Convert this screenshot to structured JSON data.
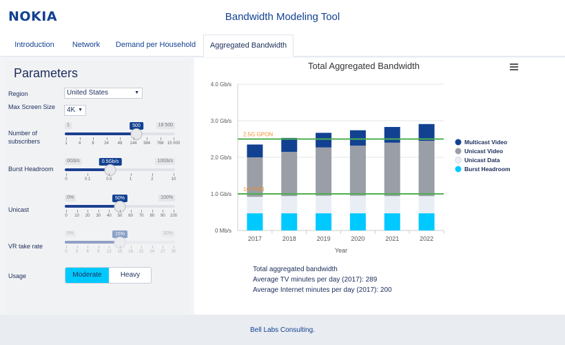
{
  "header": {
    "logo": "NOKIA",
    "title": "Bandwidth Modeling Tool"
  },
  "tabs": [
    {
      "label": "Introduction",
      "active": false
    },
    {
      "label": "Network",
      "active": false
    },
    {
      "label": "Demand per Household",
      "active": false
    },
    {
      "label": "Aggregated Bandwidth",
      "active": true
    }
  ],
  "parameters": {
    "title": "Parameters",
    "region": {
      "label": "Region",
      "value": "United States"
    },
    "screen": {
      "label": "Max Screen Size",
      "value": "4K"
    },
    "subscribers": {
      "label": "Number of subscribers",
      "min": "1",
      "max": "18 500",
      "value": "500",
      "ticks": [
        "1",
        "4",
        "8",
        "24",
        "48",
        "144",
        "384",
        "768",
        "15 000"
      ]
    },
    "burst": {
      "label": "Burst Headroom",
      "min": "0Gb/s",
      "max": "10Gb/s",
      "value": "0.5Gb/s",
      "ticks": [
        "0",
        "0.1",
        "0.5",
        "1",
        "2",
        "10"
      ]
    },
    "unicast": {
      "label": "Unicast",
      "min": "0%",
      "max": "100%",
      "value": "50%",
      "ticks": [
        "0",
        "10",
        "20",
        "30",
        "40",
        "50",
        "60",
        "70",
        "80",
        "90",
        "100"
      ]
    },
    "vr": {
      "label": "VR take rate",
      "min": "0%",
      "max": "30%",
      "value": "15%",
      "ticks": [
        "0",
        "3",
        "6",
        "9",
        "12",
        "15",
        "18",
        "21",
        "24",
        "27",
        "30"
      ]
    },
    "usage": {
      "label": "Usage",
      "options": [
        "Moderate",
        "Heavy"
      ],
      "selected": "Moderate"
    }
  },
  "chart_data": {
    "type": "bar",
    "stacked": true,
    "title": "Total Aggregated Bandwidth",
    "xlabel": "Year",
    "ylabel": "",
    "categories": [
      "2017",
      "2018",
      "2019",
      "2020",
      "2021",
      "2022"
    ],
    "ylim": [
      0,
      4.0
    ],
    "yticks": [
      "0 Mb/s",
      "1.0 Gb/s",
      "2.0 Gb/s",
      "3.0 Gb/s",
      "4.0 Gb/s"
    ],
    "series": [
      {
        "name": "Burst Headroom",
        "color": "#00c9ff",
        "values": [
          0.47,
          0.47,
          0.47,
          0.47,
          0.47,
          0.47
        ]
      },
      {
        "name": "Unicast Data",
        "color": "#e9eef5",
        "values": [
          0.45,
          0.47,
          0.48,
          0.48,
          0.47,
          0.47
        ]
      },
      {
        "name": "Unicast Video",
        "color": "#9a9ea6",
        "values": [
          1.08,
          1.21,
          1.32,
          1.37,
          1.46,
          1.51
        ]
      },
      {
        "name": "Multicast Video",
        "color": "#124191",
        "values": [
          0.35,
          0.38,
          0.4,
          0.42,
          0.43,
          0.46
        ]
      }
    ],
    "legend_order": [
      "Multicast Video",
      "Unicast Video",
      "Unicast Data",
      "Burst Headroom"
    ],
    "legend_position": "right",
    "reference_lines": [
      {
        "label": "2.5G GPON",
        "value": 2.5,
        "color": "#4caf50",
        "label_color": "#f28c28"
      },
      {
        "label": "1G PON",
        "value": 1.0,
        "color": "#4caf50",
        "label_color": "#f28c28"
      }
    ]
  },
  "summary": {
    "line1": "Total aggregated bandwidth",
    "line2": "Average TV minutes per day (2017): 289",
    "line3": "Average Internet minutes per day (2017): 200"
  },
  "footer": {
    "text": "Bell Labs Consulting."
  }
}
